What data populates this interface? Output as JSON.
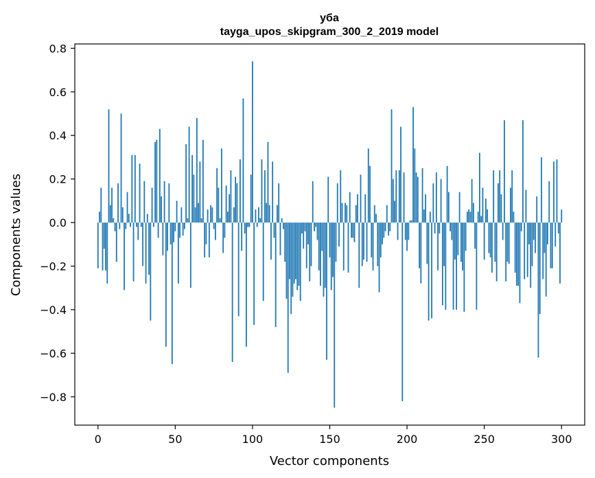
{
  "chart_data": {
    "type": "bar",
    "title": "уба",
    "subtitle": "tayga_upos_skipgram_300_2_2019 model",
    "xlabel": "Vector components",
    "ylabel": "Components values",
    "xlim": [
      -15,
      315
    ],
    "ylim": [
      -0.93,
      0.82
    ],
    "xticks": [
      0,
      50,
      100,
      150,
      200,
      250,
      300
    ],
    "yticks": [
      -0.8,
      -0.6,
      -0.4,
      -0.2,
      0.0,
      0.2,
      0.4,
      0.6,
      0.8
    ],
    "ytick_labels": [
      "−0.8",
      "−0.6",
      "−0.4",
      "−0.2",
      "0.0",
      "0.2",
      "0.4",
      "0.6",
      "0.8"
    ],
    "xtick_labels": [
      "0",
      "50",
      "100",
      "150",
      "200",
      "250",
      "300"
    ],
    "grid": false,
    "bar_color": "#1f77b4",
    "values": [
      -0.21,
      0.05,
      0.16,
      -0.22,
      -0.12,
      -0.22,
      -0.28,
      0.52,
      0.08,
      0.16,
      0.02,
      -0.04,
      -0.18,
      0.18,
      -0.03,
      0.5,
      0.07,
      -0.31,
      -0.03,
      0.14,
      0.04,
      -0.02,
      0.31,
      -0.27,
      0.31,
      -0.02,
      -0.08,
      0.27,
      -0.02,
      -0.2,
      0.19,
      -0.28,
      0.04,
      -0.24,
      -0.45,
      0.16,
      -0.02,
      0.37,
      0.38,
      -0.07,
      0.43,
      0.12,
      -0.15,
      0.19,
      -0.57,
      -0.13,
      0.18,
      -0.1,
      -0.65,
      -0.09,
      -0.04,
      0.1,
      -0.28,
      -0.07,
      0.07,
      -0.06,
      -0.03,
      0.36,
      0.02,
      0.44,
      -0.3,
      0.31,
      0.22,
      0.07,
      0.48,
      0.09,
      0.28,
      0.02,
      0.38,
      -0.16,
      -0.1,
      0.06,
      -0.16,
      0.08,
      0.07,
      -0.03,
      -0.08,
      0.25,
      0.16,
      0.02,
      0.34,
      -0.14,
      -0.07,
      0.17,
      0.05,
      0.13,
      0.24,
      -0.64,
      0.07,
      0.21,
      0.18,
      -0.43,
      0.29,
      -0.13,
      0.57,
      -0.05,
      -0.57,
      -0.02,
      -0.02,
      0.22,
      0.74,
      -0.47,
      0.06,
      -0.02,
      0.07,
      0.02,
      0.29,
      -0.36,
      0.24,
      0.09,
      0.37,
      0.08,
      -0.17,
      0.28,
      -0.07,
      -0.48,
      0.08,
      0.18,
      -0.15,
      0.02,
      -0.03,
      -0.18,
      -0.35,
      -0.69,
      -0.26,
      -0.42,
      -0.34,
      -0.28,
      -0.26,
      -0.31,
      -0.29,
      -0.36,
      -0.05,
      -0.12,
      -0.04,
      -0.21,
      -0.1,
      -0.27,
      -0.2,
      0.19,
      -0.04,
      -0.02,
      -0.08,
      -0.22,
      -0.29,
      -0.13,
      -0.34,
      -0.3,
      -0.63,
      0.21,
      -0.16,
      -0.31,
      -0.25,
      -0.85,
      -0.18,
      0.18,
      -0.11,
      0.24,
      0.09,
      -0.22,
      0.09,
      0.08,
      -0.23,
      0.14,
      -0.07,
      -0.07,
      -0.09,
      0.08,
      0.13,
      -0.3,
      0.22,
      -0.2,
      -0.17,
      0.13,
      -0.18,
      0.34,
      0.26,
      -0.16,
      -0.22,
      0.08,
      0.04,
      -0.2,
      -0.32,
      -0.16,
      -0.1,
      -0.07,
      -0.04,
      0.08,
      -0.06,
      -0.04,
      0.52,
      0.2,
      0.1,
      0.24,
      -0.08,
      0.24,
      0.44,
      -0.82,
      0.23,
      -0.08,
      -0.13,
      -0.08,
      0.01,
      0.01,
      0.53,
      0.34,
      0.23,
      0.21,
      -0.21,
      -0.28,
      0.25,
      0.06,
      0.13,
      -0.19,
      -0.45,
      0.05,
      -0.44,
      0.18,
      -0.05,
      0.23,
      -0.22,
      -0.05,
      0.2,
      -0.38,
      -0.2,
      -0.4,
      0.26,
      0.14,
      -0.04,
      -0.08,
      -0.4,
      -0.17,
      -0.4,
      -0.15,
      0.14,
      -0.18,
      -0.22,
      -0.41,
      -0.13,
      0.05,
      0.06,
      0.05,
      0.2,
      0.09,
      -0.12,
      -0.4,
      0.05,
      0.32,
      0.03,
      0.16,
      -0.17,
      0.11,
      0.06,
      -0.14,
      -0.16,
      -0.23,
      0.24,
      -0.18,
      -0.27,
      0.18,
      0.24,
      0.13,
      -0.08,
      0.47,
      -0.27,
      -0.18,
      -0.19,
      0.16,
      0.24,
      0.05,
      -0.23,
      -0.29,
      -0.29,
      -0.37,
      -0.04,
      0.47,
      -0.26,
      0.15,
      -0.25,
      -0.1,
      -0.3,
      -0.2,
      -0.08,
      -0.14,
      0.12,
      -0.62,
      -0.42,
      0.3,
      -0.26,
      -0.14,
      -0.34,
      -0.1,
      0.19,
      -0.21,
      -0.21,
      0.28,
      -0.11,
      0.29,
      -0.05,
      -0.28,
      0.06
    ]
  }
}
